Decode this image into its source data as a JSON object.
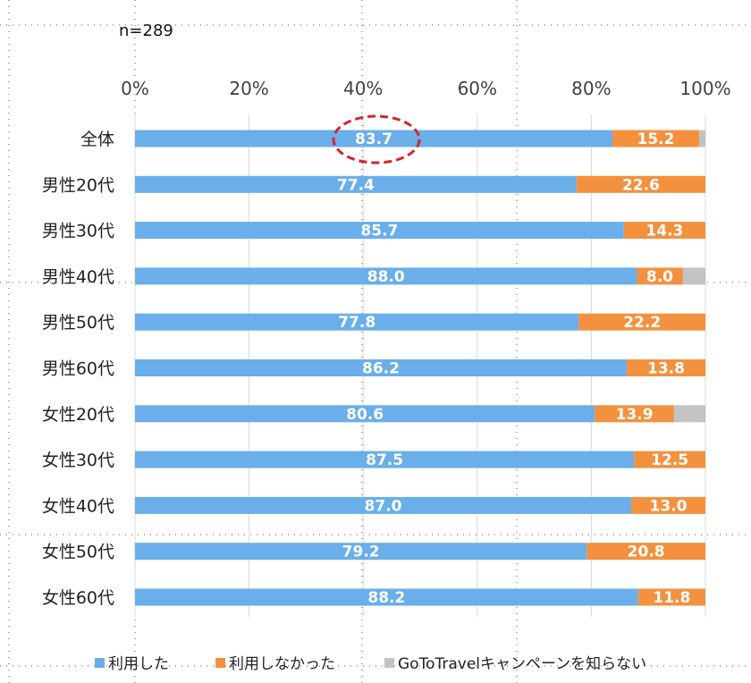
{
  "sample_label": "n=289",
  "colors": {
    "used": "#6aaeea",
    "not_used": "#f3913f",
    "unknown": "#c3c3c3",
    "highlight": "#d0272e"
  },
  "chart_data": {
    "type": "bar",
    "orientation": "horizontal-stacked",
    "xlim": [
      0,
      100
    ],
    "x_ticks": [
      "0%",
      "20%",
      "40%",
      "60%",
      "80%",
      "100%"
    ],
    "categories": [
      "全体",
      "男性20代",
      "男性30代",
      "男性40代",
      "男性50代",
      "男性60代",
      "女性20代",
      "女性30代",
      "女性40代",
      "女性50代",
      "女性60代"
    ],
    "series": [
      {
        "name": "利用した",
        "values": [
          83.7,
          77.4,
          85.7,
          88.0,
          77.8,
          86.2,
          80.6,
          87.5,
          87.0,
          79.2,
          88.2
        ]
      },
      {
        "name": "利用しなかった",
        "values": [
          15.2,
          22.6,
          14.3,
          8.0,
          22.2,
          13.8,
          13.9,
          12.5,
          13.0,
          20.8,
          11.8
        ]
      },
      {
        "name": "GoToTravelキャンペーンを知らない",
        "values": [
          1.1,
          0,
          0,
          4.0,
          0,
          0,
          5.5,
          0,
          0,
          0,
          0
        ]
      }
    ],
    "value_labels": [
      [
        "83.7",
        "77.4",
        "85.7",
        "88.0",
        "77.8",
        "86.2",
        "80.6",
        "87.5",
        "87.0",
        "79.2",
        "88.2"
      ],
      [
        "15.2",
        "22.6",
        "14.3",
        "8.0",
        "22.2",
        "13.8",
        "13.9",
        "12.5",
        "13.0",
        "20.8",
        "11.8"
      ]
    ],
    "highlighted_value": "83.7",
    "grid": true,
    "legend_position": "bottom"
  }
}
